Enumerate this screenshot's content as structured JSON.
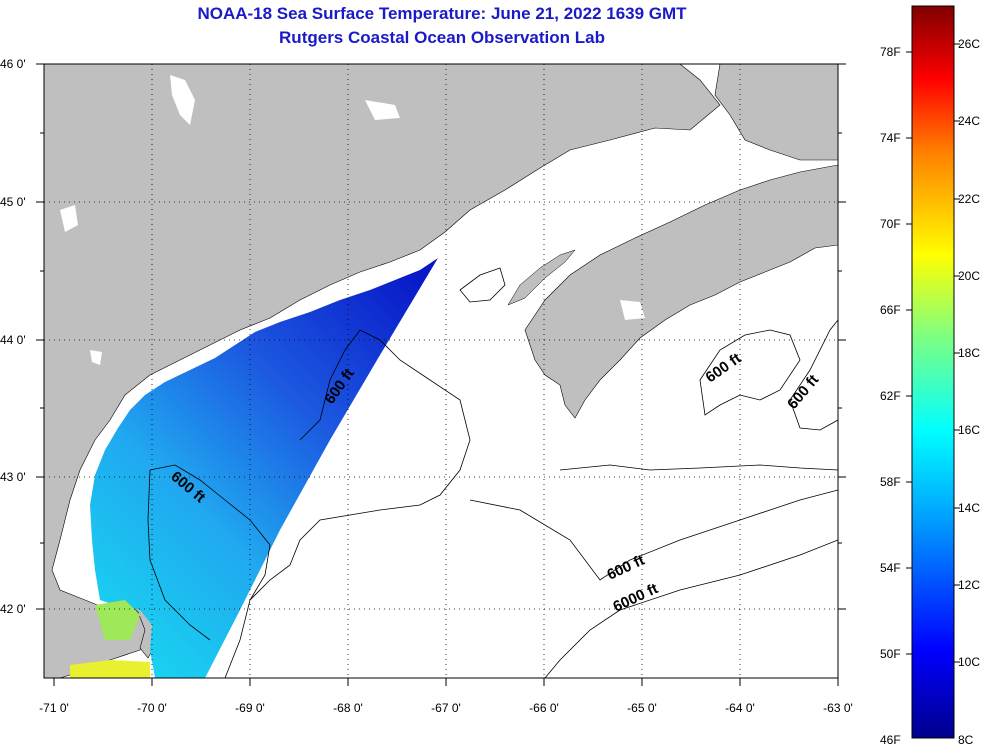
{
  "title": "NOAA-18 Sea Surface Temperature:  June 21, 2022 1639 GMT",
  "subtitle": "Rutgers Coastal Ocean Observation Lab",
  "latitude_ticks": [
    "46 0'",
    "45 0'",
    "44 0'",
    "43 0'",
    "42 0'"
  ],
  "longitude_ticks": [
    "-71 0'",
    "-70 0'",
    "-69 0'",
    "-68 0'",
    "-67 0'",
    "-66 0'",
    "-65 0'",
    "-64 0'",
    "-63 0'"
  ],
  "contour_labels": [
    "600 ft",
    "600 ft",
    "600 ft",
    "600 ft",
    "600 ft",
    "6000 ft"
  ],
  "colorbar": {
    "fahrenheit": [
      "78F",
      "74F",
      "70F",
      "66F",
      "62F",
      "58F",
      "54F",
      "50F",
      "46F"
    ],
    "celsius": [
      "26C",
      "24C",
      "22C",
      "20C",
      "18C",
      "16C",
      "14C",
      "12C",
      "10C",
      "8C"
    ]
  },
  "colors": {
    "title": "#1a1ac8",
    "land": "#bfbfbf",
    "water": "#ffffff"
  }
}
